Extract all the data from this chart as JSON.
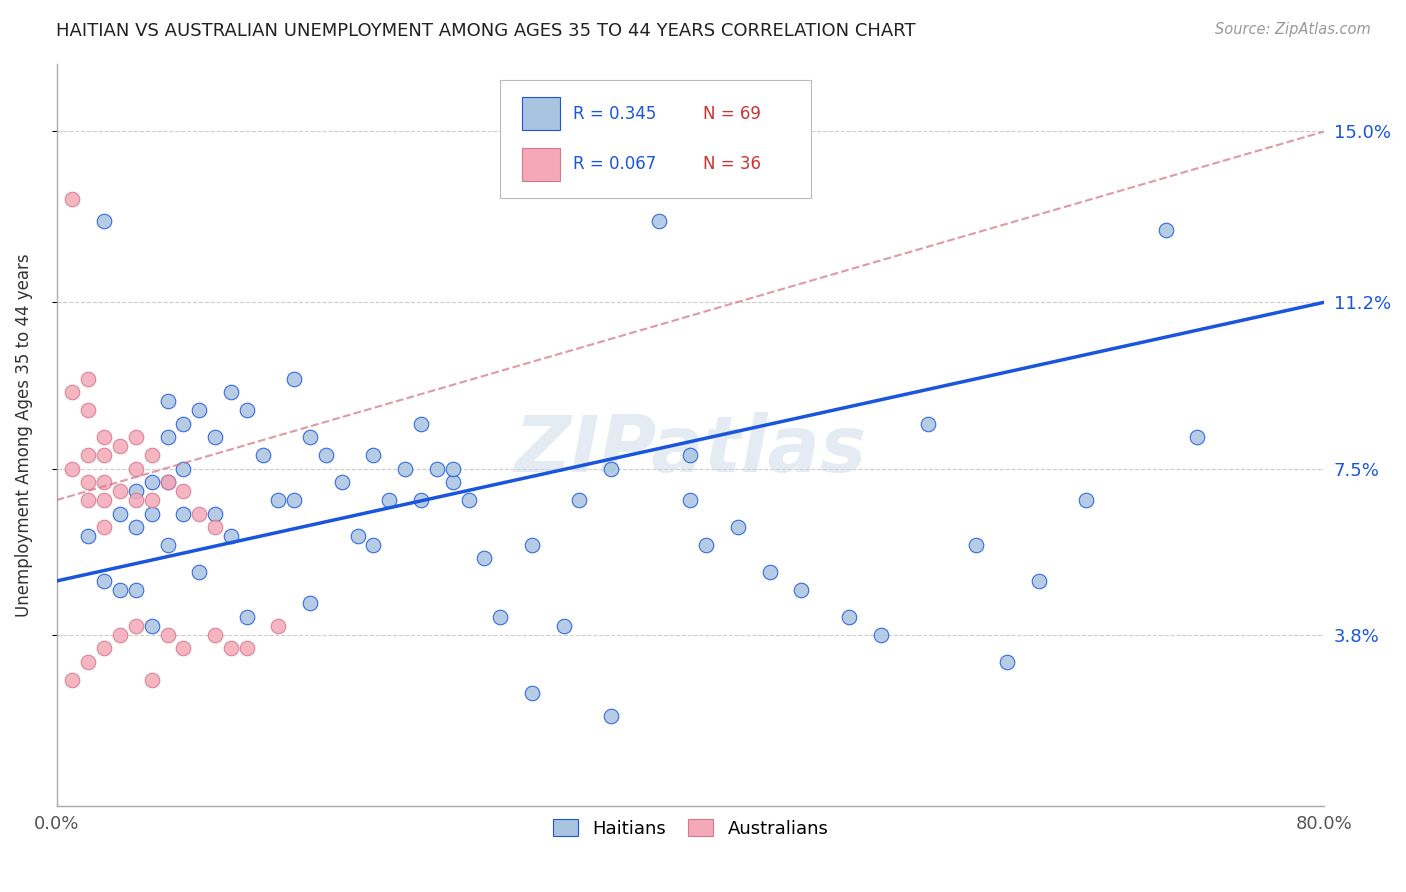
{
  "title": "HAITIAN VS AUSTRALIAN UNEMPLOYMENT AMONG AGES 35 TO 44 YEARS CORRELATION CHART",
  "source": "Source: ZipAtlas.com",
  "ylabel": "Unemployment Among Ages 35 to 44 years",
  "xlim": [
    0,
    0.8
  ],
  "ylim": [
    0,
    0.165
  ],
  "xticks": [
    0.0,
    0.1,
    0.2,
    0.3,
    0.4,
    0.5,
    0.6,
    0.7,
    0.8
  ],
  "xticklabels": [
    "0.0%",
    "",
    "",
    "",
    "",
    "",
    "",
    "",
    "80.0%"
  ],
  "ytick_positions": [
    0.038,
    0.075,
    0.112,
    0.15
  ],
  "ytick_labels": [
    "3.8%",
    "7.5%",
    "11.2%",
    "15.0%"
  ],
  "legend_label_blue": "Haitians",
  "legend_label_pink": "Australians",
  "blue_color": "#a8c4e0",
  "pink_color": "#f4a8b8",
  "trendline_blue_color": "#1a56db",
  "trendline_pink_color": "#d4788a",
  "watermark": "ZIPatlas",
  "blue_trend_start_y": 0.05,
  "blue_trend_end_y": 0.112,
  "pink_trend_start_y": 0.068,
  "pink_trend_end_y": 0.15,
  "blue_points_x": [
    0.02,
    0.03,
    0.03,
    0.04,
    0.04,
    0.05,
    0.05,
    0.05,
    0.06,
    0.06,
    0.06,
    0.07,
    0.07,
    0.07,
    0.07,
    0.08,
    0.08,
    0.08,
    0.09,
    0.09,
    0.1,
    0.1,
    0.11,
    0.11,
    0.12,
    0.12,
    0.13,
    0.14,
    0.15,
    0.15,
    0.16,
    0.16,
    0.17,
    0.18,
    0.19,
    0.2,
    0.21,
    0.22,
    0.23,
    0.24,
    0.25,
    0.26,
    0.27,
    0.28,
    0.3,
    0.32,
    0.33,
    0.35,
    0.38,
    0.4,
    0.4,
    0.41,
    0.43,
    0.45,
    0.47,
    0.5,
    0.52,
    0.55,
    0.58,
    0.6,
    0.62,
    0.65,
    0.7,
    0.72,
    0.2,
    0.23,
    0.25,
    0.3,
    0.35
  ],
  "blue_points_y": [
    0.06,
    0.13,
    0.05,
    0.065,
    0.048,
    0.07,
    0.062,
    0.048,
    0.072,
    0.065,
    0.04,
    0.09,
    0.082,
    0.072,
    0.058,
    0.085,
    0.075,
    0.065,
    0.088,
    0.052,
    0.082,
    0.065,
    0.092,
    0.06,
    0.088,
    0.042,
    0.078,
    0.068,
    0.095,
    0.068,
    0.082,
    0.045,
    0.078,
    0.072,
    0.06,
    0.058,
    0.068,
    0.075,
    0.085,
    0.075,
    0.072,
    0.068,
    0.055,
    0.042,
    0.058,
    0.04,
    0.068,
    0.075,
    0.13,
    0.078,
    0.068,
    0.058,
    0.062,
    0.052,
    0.048,
    0.042,
    0.038,
    0.085,
    0.058,
    0.032,
    0.05,
    0.068,
    0.128,
    0.082,
    0.078,
    0.068,
    0.075,
    0.025,
    0.02
  ],
  "pink_points_x": [
    0.01,
    0.01,
    0.01,
    0.01,
    0.02,
    0.02,
    0.02,
    0.02,
    0.02,
    0.02,
    0.03,
    0.03,
    0.03,
    0.03,
    0.03,
    0.03,
    0.04,
    0.04,
    0.04,
    0.05,
    0.05,
    0.05,
    0.05,
    0.06,
    0.06,
    0.06,
    0.07,
    0.07,
    0.08,
    0.08,
    0.09,
    0.1,
    0.1,
    0.11,
    0.12,
    0.14
  ],
  "pink_points_y": [
    0.135,
    0.092,
    0.075,
    0.028,
    0.095,
    0.088,
    0.078,
    0.072,
    0.068,
    0.032,
    0.082,
    0.078,
    0.072,
    0.068,
    0.062,
    0.035,
    0.08,
    0.07,
    0.038,
    0.082,
    0.075,
    0.068,
    0.04,
    0.078,
    0.068,
    0.028,
    0.072,
    0.038,
    0.07,
    0.035,
    0.065,
    0.062,
    0.038,
    0.035,
    0.035,
    0.04
  ]
}
